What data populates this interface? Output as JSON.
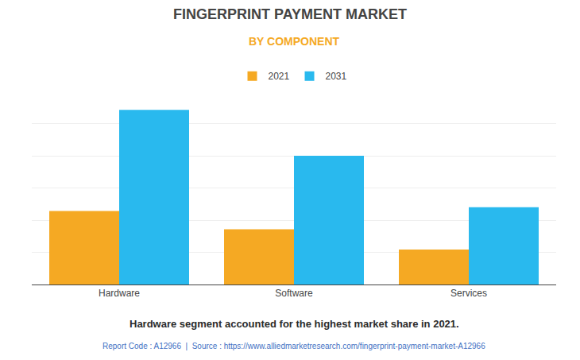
{
  "chart_data": {
    "type": "bar",
    "title": "FINGERPRINT PAYMENT MARKET",
    "subtitle": "BY COMPONENT",
    "categories": [
      "Hardware",
      "Software",
      "Services"
    ],
    "series": [
      {
        "name": "2021",
        "color": "#F5A923",
        "values": [
          0.4,
          0.3,
          0.19
        ]
      },
      {
        "name": "2031",
        "color": "#29B9EE",
        "values": [
          0.95,
          0.7,
          0.42
        ]
      }
    ],
    "ylim": [
      0,
      1.05
    ],
    "yticks": [
      0,
      0.175,
      0.35,
      0.525,
      0.7,
      0.875,
      1.05
    ],
    "grid": true,
    "tick_labels": "x",
    "legend": "top",
    "annotations": [
      "Hardware segment accounted for the highest market share in 2021.",
      "Report Code : A12966  |  Source : https://www.alliedmarketresearch.com/fingerprint-payment-market-A12966"
    ]
  }
}
